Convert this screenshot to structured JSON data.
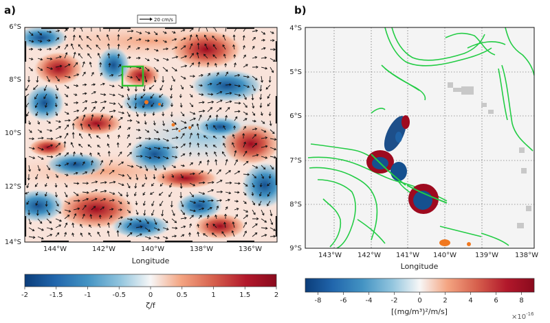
{
  "panels": [
    {
      "id": "a",
      "label": "a)",
      "xlabel": "Longitude",
      "x_ticks": [
        "144°W",
        "142°W",
        "140°W",
        "138°W",
        "136°W"
      ],
      "y_ticks": [
        "6°S",
        "8°S",
        "10°S",
        "12°S",
        "14°S"
      ],
      "scale_arrow_label": "20 cm/s",
      "colorbar": {
        "label": "ζ/f",
        "ticks": [
          "-2",
          "-1.5",
          "-1",
          "-0.5",
          "0",
          "0.5",
          "1",
          "1.5",
          "2"
        ],
        "range": [
          -2,
          2
        ],
        "colormap": "RdBu_r"
      },
      "highlight_box_color": "#2fbf2f"
    },
    {
      "id": "b",
      "label": "b)",
      "xlabel": "Longitude",
      "x_ticks": [
        "143°W",
        "142°W",
        "141°W",
        "140°W",
        "139°W",
        "138°W"
      ],
      "y_ticks": [
        "4°S",
        "5°S",
        "6°S",
        "7°S",
        "8°S",
        "9°S"
      ],
      "colorbar": {
        "label": "[(mg/m³)²/m/s]",
        "ticks": [
          "-8",
          "-6",
          "-4",
          "-2",
          "0",
          "2",
          "4",
          "6",
          "8"
        ],
        "range": [
          -9,
          9
        ],
        "multiplier": "×10",
        "multiplier_exp": "-16",
        "colormap": "RdBu_r"
      },
      "contour_color": "#22cc44"
    }
  ],
  "colors": {
    "deep_red": "#9e0a1f",
    "red": "#d6604d",
    "light_red": "#f4a582",
    "white": "#f7f7f7",
    "light_blue": "#92c5de",
    "blue": "#4393c3",
    "deep_blue": "#15508f",
    "land_orange": "#f07820",
    "island_gray": "#c8c8c8"
  }
}
